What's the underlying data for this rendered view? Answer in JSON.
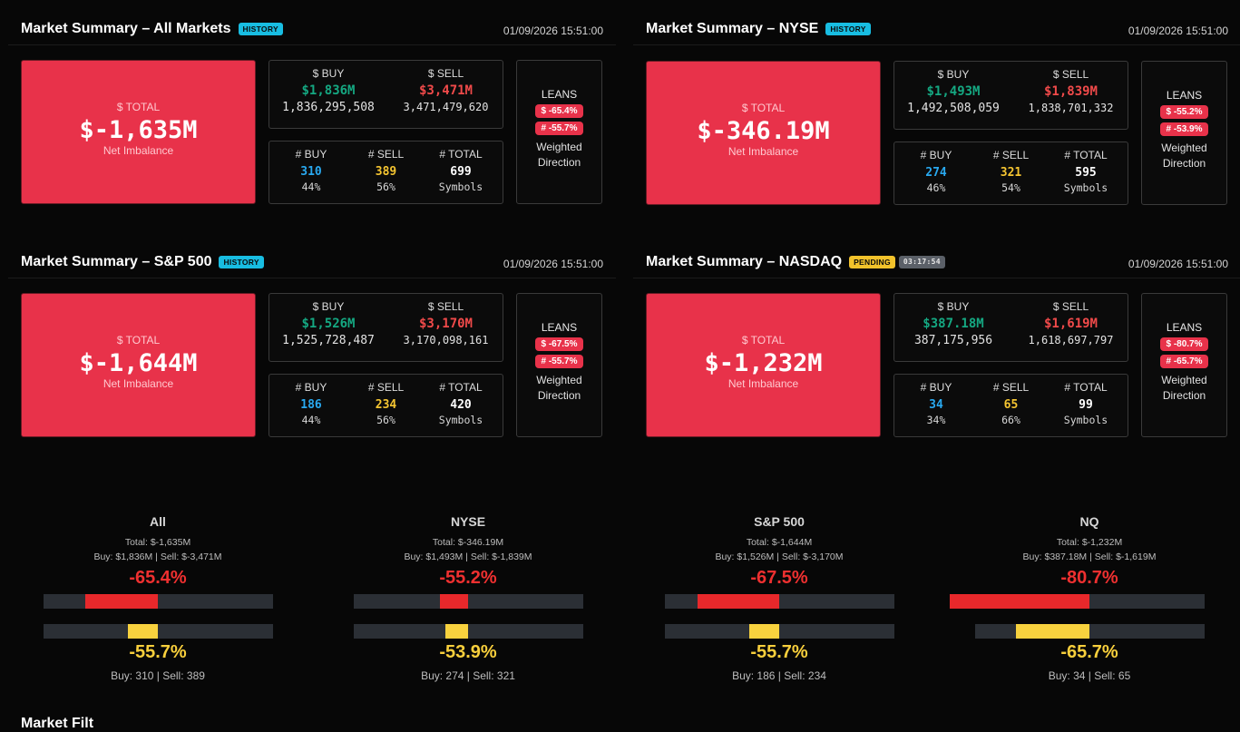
{
  "panels": [
    {
      "title": "Market Summary – All Markets",
      "badge": "HISTORY",
      "badge_type": "history",
      "timer": "",
      "timestamp": "01/09/2026 15:51:00",
      "total_label": "$ TOTAL",
      "total_value": "$-1,635M",
      "total_sub": "Net Imbalance",
      "buy_label": "$ BUY",
      "sell_label": "$ SELL",
      "buy_short": "$1,836M",
      "sell_short": "$3,471M",
      "buy_full": "1,836,295,508",
      "sell_full": "3,471,479,620",
      "cnt_buy_label": "# BUY",
      "cnt_sell_label": "# SELL",
      "cnt_total_label": "# TOTAL",
      "cnt_buy": "310",
      "cnt_sell": "389",
      "cnt_total": "699",
      "pct_buy": "44%",
      "pct_sell": "56%",
      "symbols": "Symbols",
      "leans_label": "LEANS",
      "lean_dollar": "$ -65.4%",
      "lean_count": "# -55.7%",
      "weighted": "Weighted",
      "direction": "Direction"
    },
    {
      "title": "Market Summary – NYSE",
      "badge": "HISTORY",
      "badge_type": "history",
      "timer": "",
      "timestamp": "01/09/2026 15:51:00",
      "total_label": "$ TOTAL",
      "total_value": "$-346.19M",
      "total_sub": "Net Imbalance",
      "buy_label": "$ BUY",
      "sell_label": "$ SELL",
      "buy_short": "$1,493M",
      "sell_short": "$1,839M",
      "buy_full": "1,492,508,059",
      "sell_full": "1,838,701,332",
      "cnt_buy_label": "# BUY",
      "cnt_sell_label": "# SELL",
      "cnt_total_label": "# TOTAL",
      "cnt_buy": "274",
      "cnt_sell": "321",
      "cnt_total": "595",
      "pct_buy": "46%",
      "pct_sell": "54%",
      "symbols": "Symbols",
      "leans_label": "LEANS",
      "lean_dollar": "$ -55.2%",
      "lean_count": "# -53.9%",
      "weighted": "Weighted",
      "direction": "Direction"
    },
    {
      "title": "Market Summary – S&P 500",
      "badge": "HISTORY",
      "badge_type": "history",
      "timer": "",
      "timestamp": "01/09/2026 15:51:00",
      "total_label": "$ TOTAL",
      "total_value": "$-1,644M",
      "total_sub": "Net Imbalance",
      "buy_label": "$ BUY",
      "sell_label": "$ SELL",
      "buy_short": "$1,526M",
      "sell_short": "$3,170M",
      "buy_full": "1,525,728,487",
      "sell_full": "3,170,098,161",
      "cnt_buy_label": "# BUY",
      "cnt_sell_label": "# SELL",
      "cnt_total_label": "# TOTAL",
      "cnt_buy": "186",
      "cnt_sell": "234",
      "cnt_total": "420",
      "pct_buy": "44%",
      "pct_sell": "56%",
      "symbols": "Symbols",
      "leans_label": "LEANS",
      "lean_dollar": "$ -67.5%",
      "lean_count": "# -55.7%",
      "weighted": "Weighted",
      "direction": "Direction"
    },
    {
      "title": "Market Summary – NASDAQ",
      "badge": "PENDING",
      "badge_type": "pending",
      "timer": "03:17:54",
      "timestamp": "01/09/2026 15:51:00",
      "total_label": "$ TOTAL",
      "total_value": "$-1,232M",
      "total_sub": "Net Imbalance",
      "buy_label": "$ BUY",
      "sell_label": "$ SELL",
      "buy_short": "$387.18M",
      "sell_short": "$1,619M",
      "buy_full": "387,175,956",
      "sell_full": "1,618,697,797",
      "cnt_buy_label": "# BUY",
      "cnt_sell_label": "# SELL",
      "cnt_total_label": "# TOTAL",
      "cnt_buy": "34",
      "cnt_sell": "65",
      "cnt_total": "99",
      "pct_buy": "34%",
      "pct_sell": "66%",
      "symbols": "Symbols",
      "leans_label": "LEANS",
      "lean_dollar": "$ -80.7%",
      "lean_count": "# -65.7%",
      "weighted": "Weighted",
      "direction": "Direction"
    }
  ],
  "gauges": [
    {
      "name": "All",
      "total": "Total: $-1,635M",
      "buysell": "Buy: $1,836M | Sell: $-3,471M",
      "dollar_pct": "-65.4%",
      "dollar_lean": -0.654,
      "count_lean": -0.557,
      "count_pct": "-55.7%",
      "foot": "Buy: 310 | Sell: 389"
    },
    {
      "name": "NYSE",
      "total": "Total: $-346.19M",
      "buysell": "Buy: $1,493M | Sell: $-1,839M",
      "dollar_pct": "-55.2%",
      "dollar_lean": -0.552,
      "count_lean": -0.539,
      "count_pct": "-53.9%",
      "foot": "Buy: 274 | Sell: 321"
    },
    {
      "name": "S&P 500",
      "total": "Total: $-1,644M",
      "buysell": "Buy: $1,526M | Sell: $-3,170M",
      "dollar_pct": "-67.5%",
      "dollar_lean": -0.675,
      "count_lean": -0.557,
      "count_pct": "-55.7%",
      "foot": "Buy: 186 | Sell: 234"
    },
    {
      "name": "NQ",
      "total": "Total: $-1,232M",
      "buysell": "Buy: $387.18M | Sell: $-1,619M",
      "dollar_pct": "-80.7%",
      "dollar_lean": -0.807,
      "count_lean": -0.657,
      "count_pct": "-65.7%",
      "foot": "Buy: 34 | Sell: 65"
    }
  ],
  "footer_title": "Market Filt",
  "colors": {
    "red": "#e8324a",
    "bar_red": "#e8282b",
    "bar_yellow": "#f8d23e",
    "green": "#15a882",
    "blue": "#29a9f0"
  }
}
